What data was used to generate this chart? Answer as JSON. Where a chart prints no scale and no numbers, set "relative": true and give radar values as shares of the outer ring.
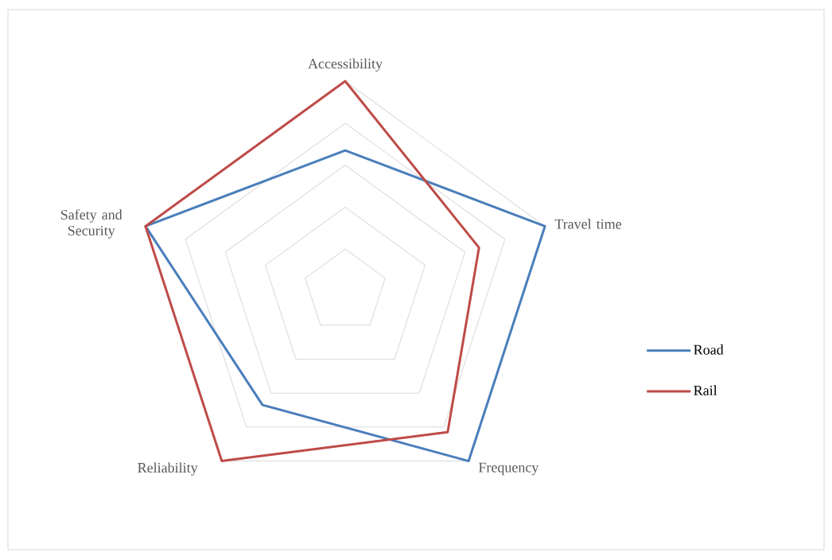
{
  "chart_data": {
    "type": "radar",
    "categories": [
      "Accessibility",
      "Travel time",
      "Frequency",
      "Reliability",
      "Safety and Security"
    ],
    "relative": true,
    "grid": true,
    "legend": "right",
    "series": [
      {
        "name": "Road",
        "color": "#4a7ebb",
        "values": [
          0.67,
          1,
          1,
          0.67,
          1
        ]
      },
      {
        "name": "Rail",
        "color": "#be4b48",
        "values": [
          1,
          0.67,
          0.83,
          1,
          1
        ]
      }
    ]
  }
}
